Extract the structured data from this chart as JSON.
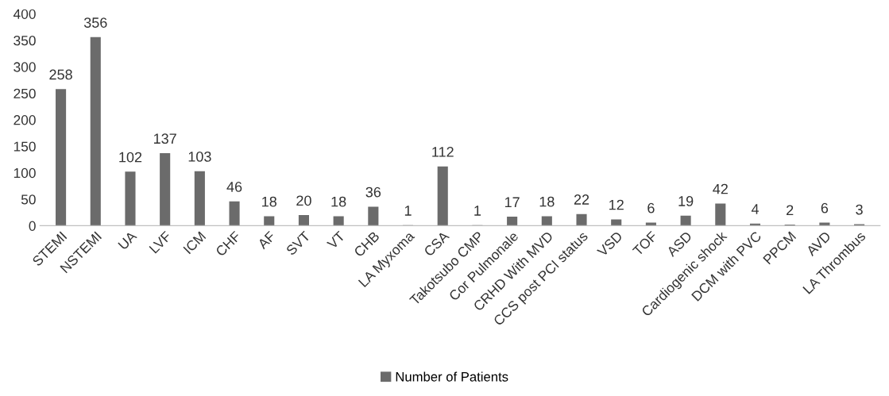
{
  "chart_data": {
    "type": "bar",
    "categories": [
      "STEMI",
      "NSTEMI",
      "UA",
      "LVF",
      "ICM",
      "CHF",
      "AF",
      "SVT",
      "VT",
      "CHB",
      "LA Myxoma",
      "CSA",
      "Takotsubo CMP",
      "Cor Pulmonale",
      "CRHD With MVD",
      "CCS post PCI status",
      "VSD",
      "TOF",
      "ASD",
      "Cardiogenic shock",
      "DCM with PVC",
      "PPCM",
      "AVD",
      "LA Thrombus"
    ],
    "series": [
      {
        "name": "Number of Patients",
        "color": "#6b6b6b",
        "values": [
          258,
          356,
          102,
          137,
          103,
          46,
          18,
          20,
          18,
          36,
          1,
          112,
          1,
          17,
          18,
          22,
          12,
          6,
          19,
          42,
          4,
          2,
          6,
          3
        ]
      }
    ],
    "ylim": [
      0,
      400
    ],
    "yticks": [
      0,
      50,
      100,
      150,
      200,
      250,
      300,
      350,
      400
    ],
    "data_labels": true,
    "grid": false,
    "legend": "bottom"
  }
}
